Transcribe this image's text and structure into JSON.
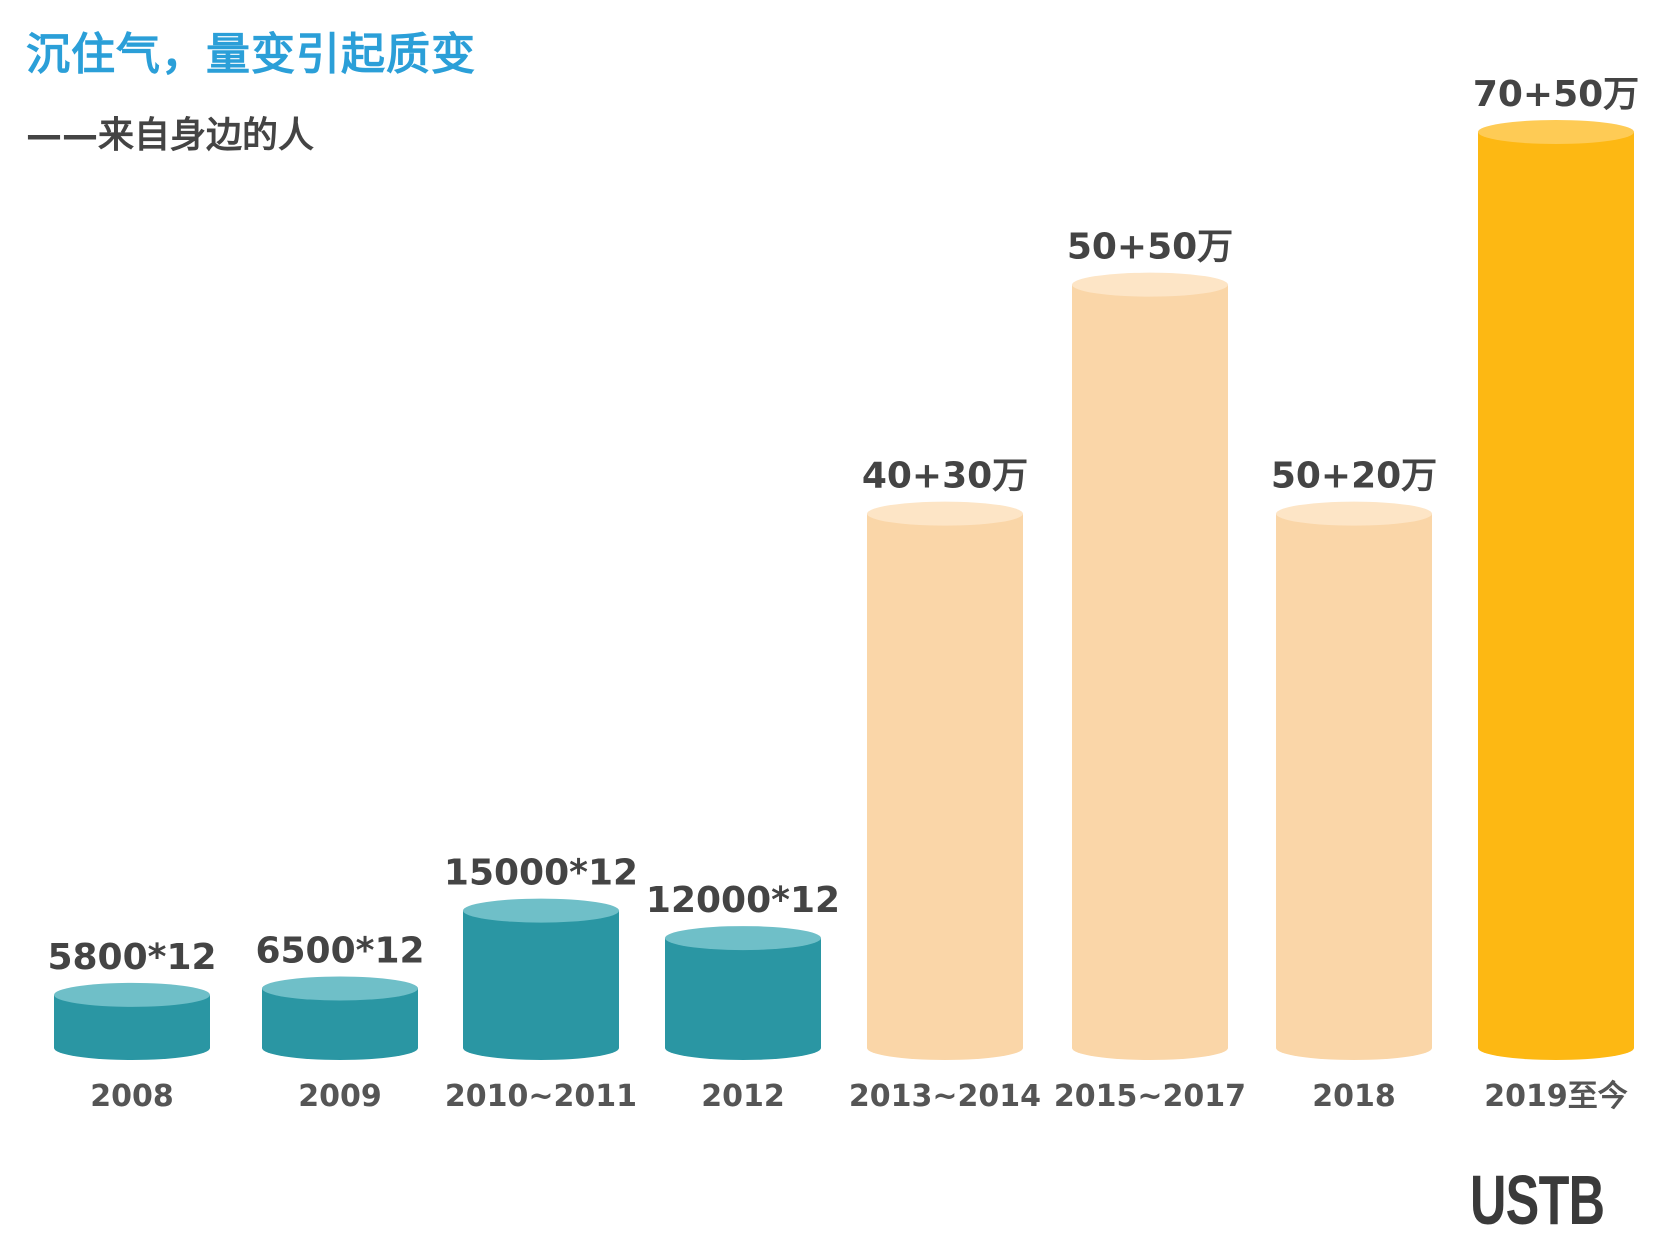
{
  "header": {
    "title": "沉住气，量变引起质变",
    "subtitle": "——来自身边的人"
  },
  "watermark": "USTB",
  "chart_data": {
    "type": "bar",
    "style": "cylinder",
    "categories": [
      "2008",
      "2009",
      "2010~2011",
      "2012",
      "2013~2014",
      "2015~2017",
      "2018",
      "2019至今"
    ],
    "data_labels": [
      "5800*12",
      "6500*12",
      "15000*12",
      "12000*12",
      "40+30万",
      "50+50万",
      "50+20万",
      "70+50万"
    ],
    "values": [
      6.96,
      7.8,
      18,
      14.4,
      70,
      100,
      70,
      120
    ],
    "value_unit": "万 (approx. annual)",
    "colors": [
      "#2a96a3",
      "#2a96a3",
      "#2a96a3",
      "#2a96a3",
      "#fad6a8",
      "#fad6a8",
      "#fad6a8",
      "#fdb813"
    ],
    "top_colors": [
      "#6fbfc8",
      "#6fbfc8",
      "#6fbfc8",
      "#6fbfc8",
      "#fde5c6",
      "#fde5c6",
      "#fde5c6",
      "#fecb55"
    ]
  }
}
